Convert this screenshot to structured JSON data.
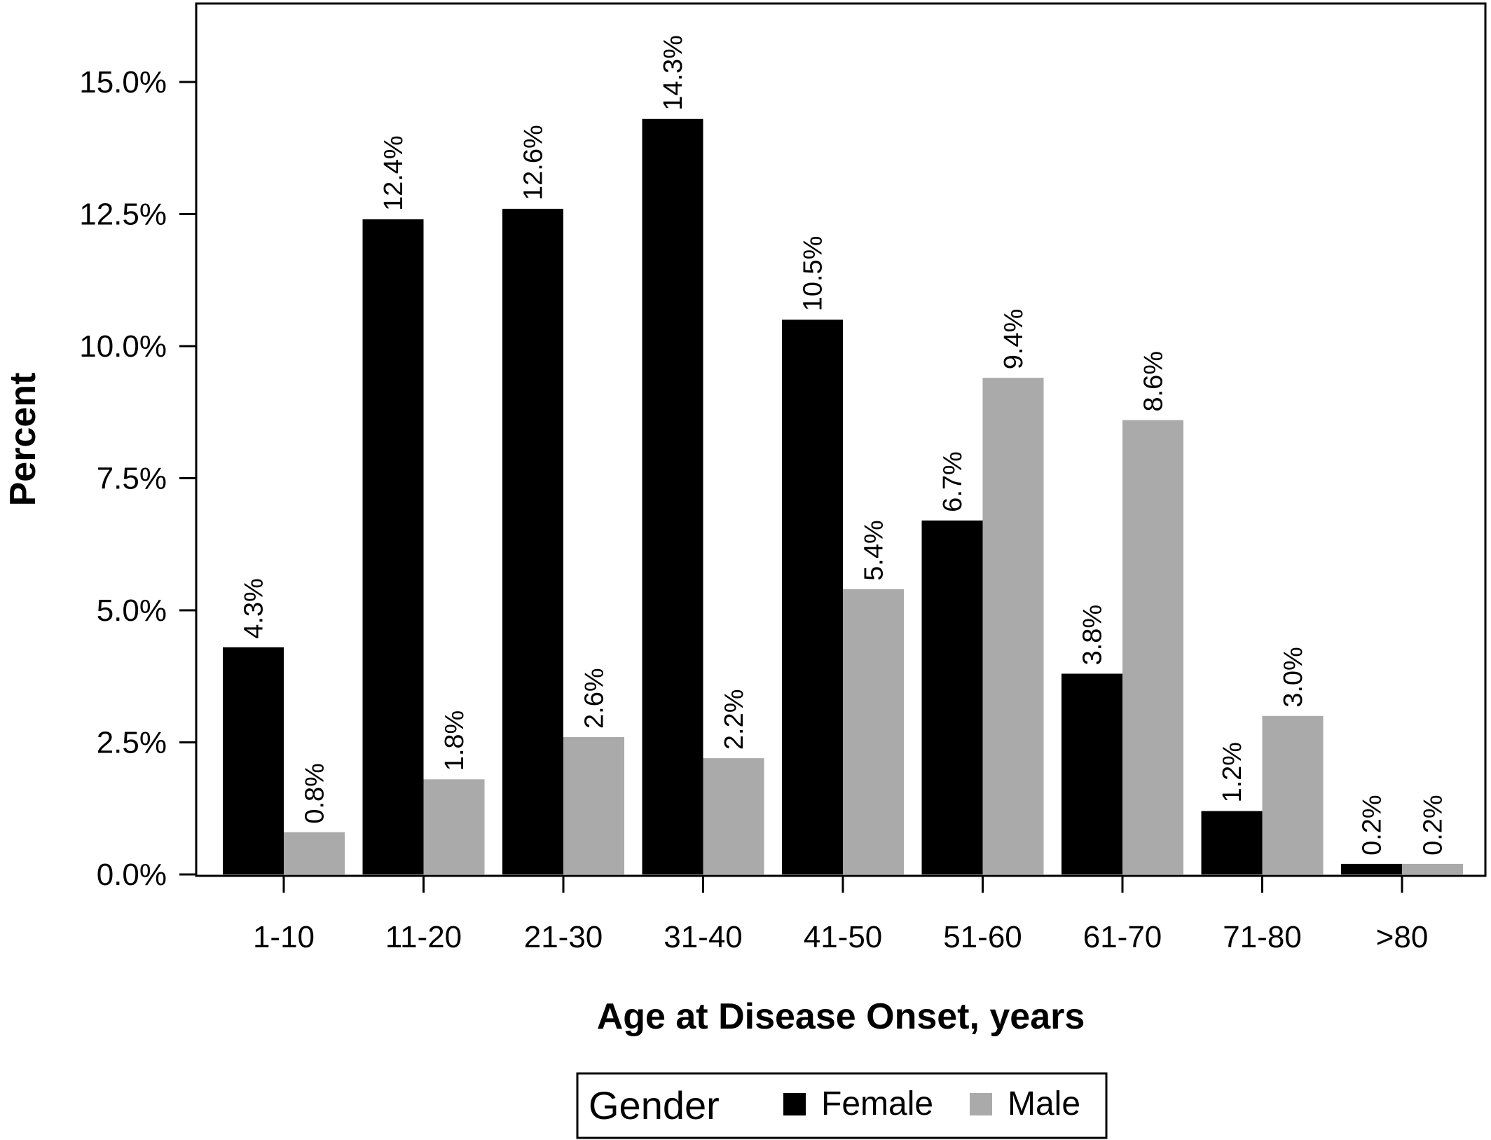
{
  "chart_data": {
    "type": "bar",
    "categories": [
      "1-10",
      "11-20",
      "21-30",
      "31-40",
      "41-50",
      "51-60",
      "61-70",
      "71-80",
      ">80"
    ],
    "series": [
      {
        "name": "Female",
        "color": "#000000",
        "values": [
          4.3,
          12.4,
          12.6,
          14.3,
          10.5,
          6.7,
          3.8,
          1.2,
          0.2
        ],
        "labels": [
          "4.3%",
          "12.4%",
          "12.6%",
          "14.3%",
          "10.5%",
          "6.7%",
          "3.8%",
          "1.2%",
          "0.2%"
        ]
      },
      {
        "name": "Male",
        "color": "#aaaaaa",
        "values": [
          0.8,
          1.8,
          2.6,
          2.2,
          5.4,
          9.4,
          8.6,
          3.0,
          0.2
        ],
        "labels": [
          "0.8%",
          "1.8%",
          "2.6%",
          "2.2%",
          "5.4%",
          "9.4%",
          "8.6%",
          "3.0%",
          "0.2%"
        ]
      }
    ],
    "xlabel": "Age at Disease Onset, years",
    "ylabel": "Percent",
    "yticks": [
      0,
      2.5,
      5,
      7.5,
      10,
      12.5,
      15
    ],
    "ytick_labels": [
      "0.0%",
      "2.5%",
      "5.0%",
      "7.5%",
      "10.0%",
      "12.5%",
      "15.0%"
    ],
    "ylim": [
      0,
      16.5
    ],
    "legend": {
      "title": "Gender",
      "placement": "bottom-center"
    },
    "grid": false
  }
}
